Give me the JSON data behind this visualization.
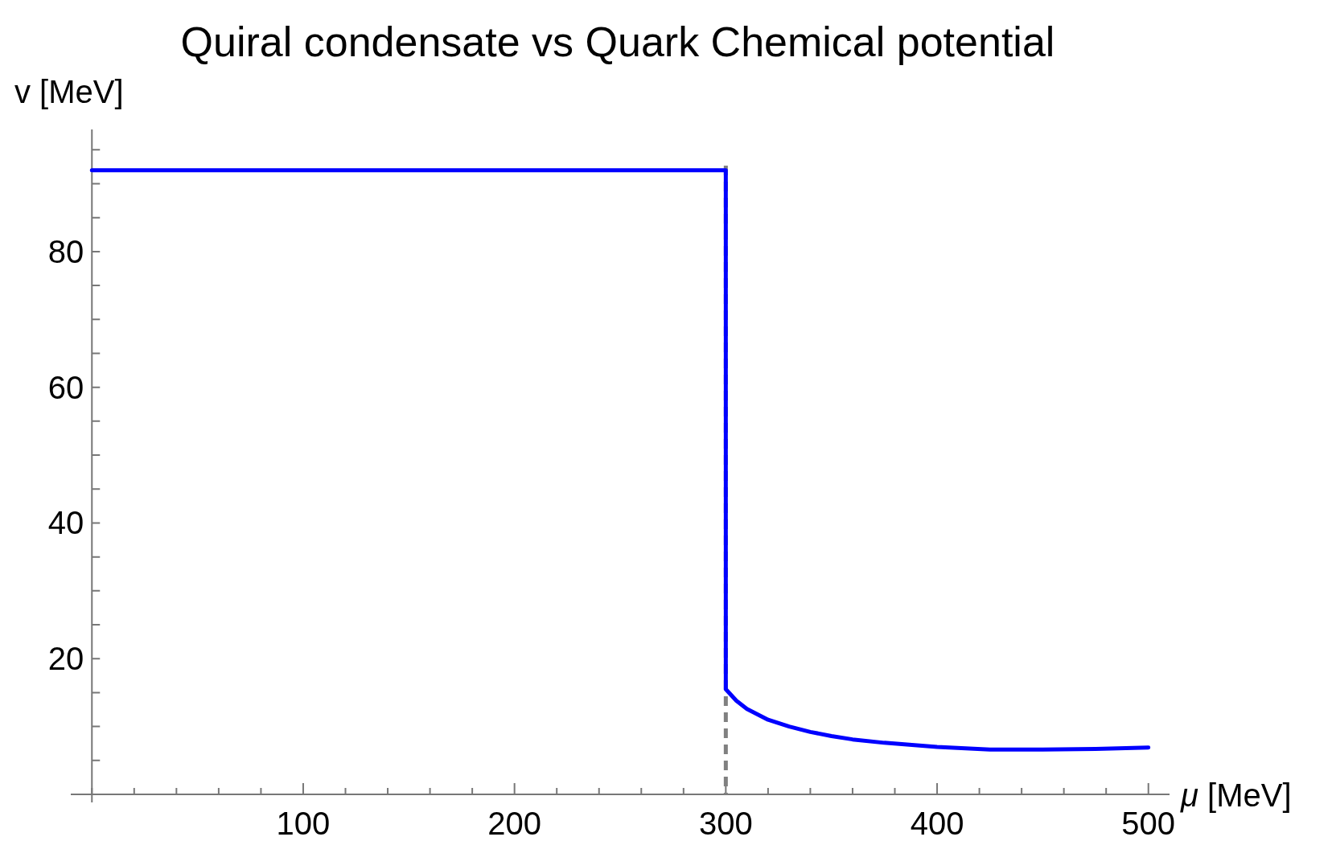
{
  "chart_data": {
    "type": "line",
    "title": "Quiral condensate vs Quark Chemical potential",
    "xlabel": "μ [MeV]",
    "ylabel": "v [MeV]",
    "x": [
      0,
      300,
      300,
      305,
      310,
      320,
      330,
      340,
      350,
      360,
      375,
      400,
      425,
      450,
      475,
      500
    ],
    "series": [
      {
        "color": "#0000ff",
        "values": [
          92,
          92,
          15.5,
          13.8,
          12.6,
          11.0,
          10.0,
          9.2,
          8.6,
          8.1,
          7.6,
          7.0,
          6.6,
          6.6,
          6.7,
          6.9
        ]
      }
    ],
    "xlim": [
      -10,
      510
    ],
    "ylim": [
      0,
      98
    ],
    "xticks": [
      {
        "value": 0,
        "label": null
      },
      {
        "value": 20,
        "label": null
      },
      {
        "value": 40,
        "label": null
      },
      {
        "value": 60,
        "label": null
      },
      {
        "value": 80,
        "label": null
      },
      100,
      {
        "value": 120,
        "label": null
      },
      {
        "value": 140,
        "label": null
      },
      {
        "value": 160,
        "label": null
      },
      {
        "value": 180,
        "label": null
      },
      200,
      {
        "value": 220,
        "label": null
      },
      {
        "value": 240,
        "label": null
      },
      {
        "value": 260,
        "label": null
      },
      {
        "value": 280,
        "label": null
      },
      300,
      {
        "value": 320,
        "label": null
      },
      {
        "value": 340,
        "label": null
      },
      {
        "value": 360,
        "label": null
      },
      {
        "value": 380,
        "label": null
      },
      400,
      {
        "value": 420,
        "label": null
      },
      {
        "value": 440,
        "label": null
      },
      {
        "value": 460,
        "label": null
      },
      {
        "value": 480,
        "label": null
      },
      500
    ],
    "yticks": [
      {
        "value": 5,
        "label": null
      },
      {
        "value": 10,
        "label": null
      },
      {
        "value": 15,
        "label": null
      },
      20,
      {
        "value": 25,
        "label": null
      },
      {
        "value": 30,
        "label": null
      },
      {
        "value": 35,
        "label": null
      },
      40,
      {
        "value": 45,
        "label": null
      },
      {
        "value": 50,
        "label": null
      },
      {
        "value": 55,
        "label": null
      },
      60,
      {
        "value": 65,
        "label": null
      },
      {
        "value": 70,
        "label": null
      },
      {
        "value": 75,
        "label": null
      },
      80,
      {
        "value": 85,
        "label": null
      },
      {
        "value": 90,
        "label": null
      },
      {
        "value": 95,
        "label": null
      }
    ],
    "ref_lines": [
      {
        "axis": "x",
        "value": 300,
        "color": "#808080",
        "line_style": "dashed"
      }
    ],
    "grid": false,
    "line_style": "solid",
    "marker": "none"
  }
}
